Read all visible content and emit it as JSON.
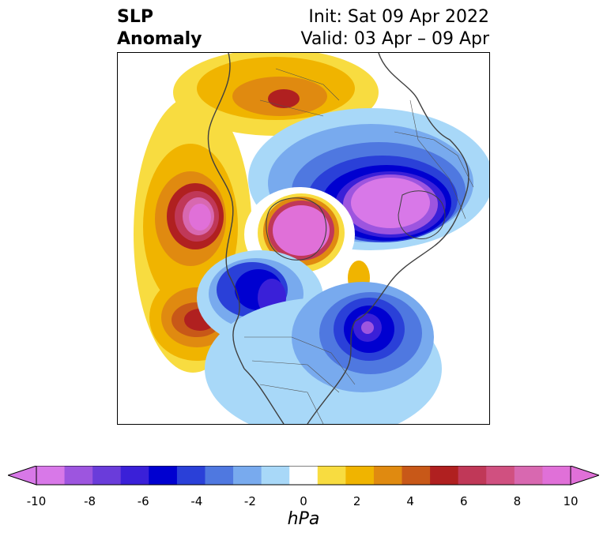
{
  "title": {
    "left_line1": "SLP",
    "left_line2": "Anomaly",
    "right_line1": "Init: Sat 09 Apr 2022",
    "right_line2": "Valid: 03 Apr – 09 Apr"
  },
  "colorbar": {
    "unit": "hPa",
    "ticks": [
      "-10",
      "-8",
      "-6",
      "-4",
      "-2",
      "0",
      "2",
      "4",
      "6",
      "8",
      "10"
    ],
    "levels": [
      -10,
      -9,
      -8,
      -7,
      -6,
      -5,
      -4,
      -3,
      -2,
      -1,
      1,
      2,
      3,
      4,
      5,
      6,
      7,
      8,
      9,
      10
    ],
    "colors": [
      "#d878e8",
      "#9d55df",
      "#6a3cda",
      "#3a20d8",
      "#0000d0",
      "#2a40d8",
      "#4f78e0",
      "#78aaee",
      "#a8d8f8",
      "#ffffff",
      "#f8dc40",
      "#f0b400",
      "#e08a10",
      "#c85818",
      "#b02020",
      "#c03858",
      "#d05080",
      "#d868b0",
      "#e070d8"
    ],
    "extend_low_color": "#d878e8",
    "extend_high_color": "#e070d8"
  }
}
